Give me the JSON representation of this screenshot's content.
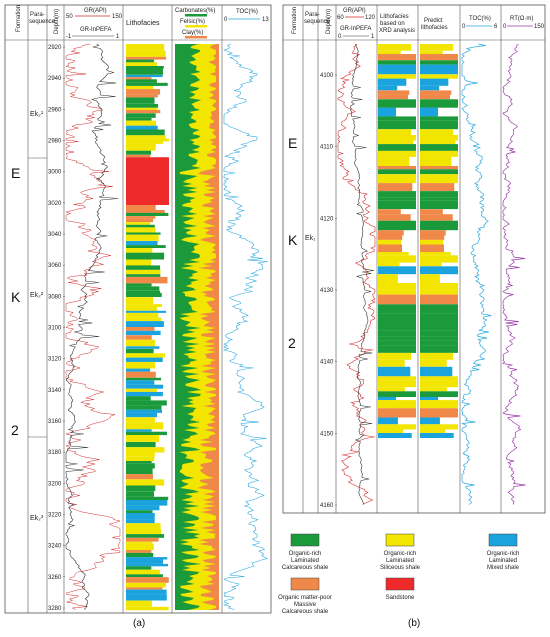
{
  "panel_a": {
    "caption": "(a)",
    "headers": {
      "formation": "Formation",
      "parasequence": "Para-\nsequence",
      "depth": "Depth(m)",
      "gr_title": "GR(API)",
      "gr_min": "50",
      "gr_max": "150",
      "inpefa_title": "GR-InPEFA",
      "inpefa_min": "-1",
      "inpefa_max": "1",
      "lithofacies": "Lithofacies",
      "carbonates": "Carbonates(%)",
      "felsic": "Felsic(%)",
      "clay": "Clay(%)",
      "toc": "TOC(%)",
      "toc_min": "0",
      "toc_max": "13"
    },
    "formation_letters": [
      "E",
      "K",
      "2"
    ],
    "parasequences": [
      "Ek₂¹",
      "Ek₂²",
      "Ek₂³"
    ],
    "depth_ticks": [
      "2920",
      "2940",
      "2960",
      "2980",
      "3000",
      "3020",
      "3040",
      "3060",
      "3080",
      "3100",
      "3120",
      "3140",
      "3160",
      "3180",
      "3200",
      "3220",
      "3240",
      "3260",
      "3280"
    ]
  },
  "panel_b": {
    "caption": "(b)",
    "headers": {
      "formation": "Formation",
      "parasequence": "Para-\nsequence",
      "depth": "Depth(m)",
      "gr_title": "GR(API)",
      "gr_min": "60",
      "gr_max": "120",
      "inpefa_title": "GR-InPEFA",
      "inpefa_min": "0",
      "inpefa_max": "1",
      "litho_xrd": "Lithofacies based on XRD analysis",
      "predict": "Predict lithofacies",
      "toc": "TOC(%)",
      "toc_min": "0",
      "toc_max": "6",
      "rt": "RT(Ω·m)",
      "rt_min": "0",
      "rt_max": "150"
    },
    "formation_letters": [
      "E",
      "K",
      "2"
    ],
    "parasequence": "Ek₁",
    "depth_ticks": [
      "4100",
      "4110",
      "4120",
      "4130",
      "4140",
      "4150",
      "4160"
    ]
  },
  "legend": [
    {
      "label": "Organic-rich\nLaminated\nCalcareous shale",
      "color": "#1a9a3a"
    },
    {
      "label": "Organic-rich\nLaminated\nSiliceous shale",
      "color": "#f2e500"
    },
    {
      "label": "Organic-rich\nLaminated\nMixed shale",
      "color": "#1aa3dc"
    },
    {
      "label": "Organic matter-poor\nMassive\nCalcareous shale",
      "color": "#f0884a"
    },
    {
      "label": "Sandstone",
      "color": "#ee2a2a"
    }
  ],
  "colors": {
    "calcareous": "#1a9a3a",
    "siliceous": "#f2e500",
    "mixed": "#1aa3dc",
    "massive": "#f0884a",
    "sandstone": "#ee2a2a",
    "gr_curve": "#d42a2a",
    "toc_curve": "#2aa8e0",
    "rt_curve": "#9a3aa8",
    "inpefa_curve": "#333333"
  }
}
